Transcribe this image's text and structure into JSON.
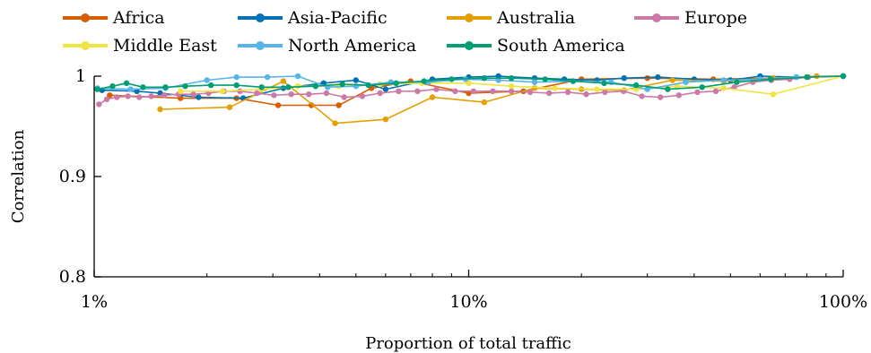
{
  "chart_data": {
    "type": "line",
    "xlabel": "Proportion of total traffic",
    "ylabel": "Correlation",
    "xscale": "log",
    "xlim": [
      1,
      100
    ],
    "ylim": [
      0.8,
      1.0
    ],
    "x_ticks": [
      {
        "value": 1,
        "label": "1%"
      },
      {
        "value": 10,
        "label": "10%"
      },
      {
        "value": 100,
        "label": "100%"
      }
    ],
    "y_ticks": [
      {
        "value": 0.8,
        "label": "0.8"
      },
      {
        "value": 0.9,
        "label": "0.9"
      },
      {
        "value": 1.0,
        "label": "1"
      }
    ],
    "grid": false,
    "legend_position": "top",
    "series": [
      {
        "name": "Africa",
        "color": "#d55e00",
        "x": [
          1.1,
          1.7,
          2.4,
          3.1,
          3.8,
          4.5,
          5.5,
          7,
          10,
          14,
          20,
          30,
          45,
          65,
          100
        ],
        "y": [
          0.981,
          0.978,
          0.978,
          0.971,
          0.971,
          0.971,
          0.988,
          0.995,
          0.983,
          0.985,
          0.997,
          0.998,
          0.997,
          0.998,
          1.0
        ]
      },
      {
        "name": "Asia-Pacific",
        "color": "#0072b2",
        "x": [
          1.05,
          1.3,
          1.5,
          1.9,
          2.5,
          3.2,
          4.1,
          5.0,
          6.0,
          8.0,
          10.0,
          12.0,
          15.0,
          18.0,
          22.0,
          26.0,
          32.0,
          40.0,
          50.0,
          60.0,
          75.0,
          100
        ],
        "y": [
          0.986,
          0.985,
          0.983,
          0.979,
          0.978,
          0.988,
          0.993,
          0.996,
          0.987,
          0.997,
          0.999,
          1.0,
          0.998,
          0.997,
          0.996,
          0.998,
          0.999,
          0.997,
          0.996,
          1.0,
          0.999,
          1.0
        ]
      },
      {
        "name": "Australia",
        "color": "#e69f00",
        "x": [
          1.5,
          2.3,
          3.2,
          4.4,
          6.0,
          8.0,
          11.0,
          15.0,
          20.0,
          26.0,
          35.0,
          48.0,
          65.0,
          85.0,
          100
        ],
        "y": [
          0.967,
          0.969,
          0.995,
          0.953,
          0.957,
          0.979,
          0.974,
          0.988,
          0.987,
          0.986,
          0.996,
          0.995,
          0.998,
          1.0,
          1.0
        ]
      },
      {
        "name": "Europe",
        "color": "#cc79a7",
        "x": [
          1.03,
          1.08,
          1.15,
          1.23,
          1.32,
          1.42,
          1.54,
          1.68,
          1.84,
          2.02,
          2.22,
          2.45,
          2.72,
          3.02,
          3.36,
          3.74,
          4.17,
          4.65,
          5.2,
          5.8,
          6.5,
          7.3,
          8.2,
          9.2,
          10.3,
          11.6,
          13.0,
          14.6,
          16.4,
          18.4,
          20.6,
          23.1,
          25.9,
          29.0,
          32.5,
          36.4,
          40.8,
          45.7,
          51.2,
          57.4,
          64.3,
          72.0,
          80.7,
          100
        ],
        "y": [
          0.972,
          0.977,
          0.979,
          0.98,
          0.979,
          0.98,
          0.981,
          0.982,
          0.982,
          0.983,
          0.985,
          0.985,
          0.983,
          0.981,
          0.982,
          0.982,
          0.983,
          0.979,
          0.98,
          0.983,
          0.985,
          0.985,
          0.987,
          0.985,
          0.985,
          0.985,
          0.985,
          0.984,
          0.983,
          0.984,
          0.982,
          0.984,
          0.985,
          0.98,
          0.979,
          0.981,
          0.984,
          0.985,
          0.989,
          0.994,
          0.996,
          0.997,
          0.999,
          1.0
        ]
      },
      {
        "name": "Middle East",
        "color": "#f0e442",
        "x": [
          1.7,
          2.2,
          2.8,
          3.5,
          4.5,
          5.8,
          7.5,
          10.0,
          13.0,
          17.0,
          22.0,
          28.0,
          36.0,
          48.0,
          65.0,
          100
        ],
        "y": [
          0.985,
          0.985,
          0.987,
          0.99,
          0.99,
          0.992,
          0.993,
          0.993,
          0.99,
          0.988,
          0.987,
          0.987,
          0.99,
          0.988,
          0.982,
          1.0
        ]
      },
      {
        "name": "North America",
        "color": "#56b4e9",
        "x": [
          1.02,
          1.25,
          1.55,
          2.0,
          2.4,
          2.9,
          3.5,
          4.2,
          5.0,
          6.2,
          7.8,
          9.8,
          12.0,
          15.0,
          19.0,
          24.0,
          30.0,
          38.0,
          48.0,
          60.0,
          75.0,
          100
        ],
        "y": [
          0.988,
          0.987,
          0.988,
          0.996,
          0.999,
          0.999,
          1.0,
          0.989,
          0.99,
          0.994,
          0.994,
          0.997,
          0.996,
          0.994,
          0.995,
          0.994,
          0.987,
          0.994,
          0.996,
          0.997,
          0.999,
          1.0
        ]
      },
      {
        "name": "South America",
        "color": "#009e73",
        "x": [
          1.02,
          1.12,
          1.22,
          1.35,
          1.55,
          1.75,
          2.05,
          2.4,
          2.8,
          3.3,
          3.9,
          4.6,
          5.4,
          6.4,
          7.6,
          9.0,
          11.0,
          13.0,
          16.0,
          19.0,
          23.0,
          28.0,
          34.0,
          42.0,
          52.0,
          64.0,
          80.0,
          100
        ],
        "y": [
          0.987,
          0.99,
          0.993,
          0.989,
          0.989,
          0.99,
          0.991,
          0.991,
          0.989,
          0.989,
          0.99,
          0.992,
          0.991,
          0.993,
          0.995,
          0.997,
          0.998,
          0.998,
          0.997,
          0.995,
          0.993,
          0.991,
          0.987,
          0.989,
          0.994,
          0.997,
          0.999,
          1.0
        ]
      }
    ]
  }
}
